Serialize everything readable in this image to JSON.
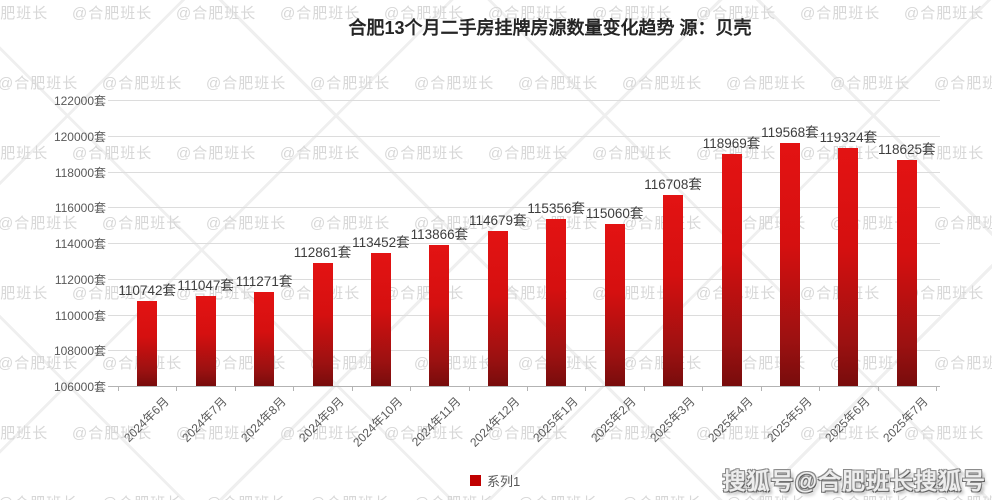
{
  "title": "合肥13个月二手房挂牌房源数量变化趋势 源：贝壳",
  "watermark": {
    "text": "@合肥班长",
    "color": "#d7d7d7"
  },
  "legend": {
    "items": [
      {
        "label": "系列1",
        "color": "#c00000"
      }
    ]
  },
  "footer": {
    "sohu_badge": "搜狐号@合肥班长搜狐号"
  },
  "chart_data": {
    "type": "bar",
    "title": "合肥13个月二手房挂牌房源数量变化趋势 源：贝壳",
    "categories": [
      "2024年6月",
      "2024年7月",
      "2024年8月",
      "2024年9月",
      "2024年10月",
      "2024年11月",
      "2024年12月",
      "2025年1月",
      "2025年2月",
      "2025年3月",
      "2025年4月",
      "2025年5月",
      "2025年6月",
      "2025年7月"
    ],
    "series": [
      {
        "name": "系列1",
        "values": [
          110742,
          111047,
          111271,
          112861,
          113452,
          113866,
          114679,
          115356,
          115060,
          116708,
          118969,
          119568,
          119324,
          118625
        ]
      }
    ],
    "unit_suffix": "套",
    "ylim": [
      106000,
      122000
    ],
    "ytick_step": 2000,
    "yticks": [
      106000,
      108000,
      110000,
      112000,
      114000,
      116000,
      118000,
      120000,
      122000
    ],
    "grid": true,
    "legend_position": "bottom",
    "bar_color_top": "#e31313",
    "bar_color_bottom": "#780c0c",
    "legend_marker_color": "#c00000"
  }
}
